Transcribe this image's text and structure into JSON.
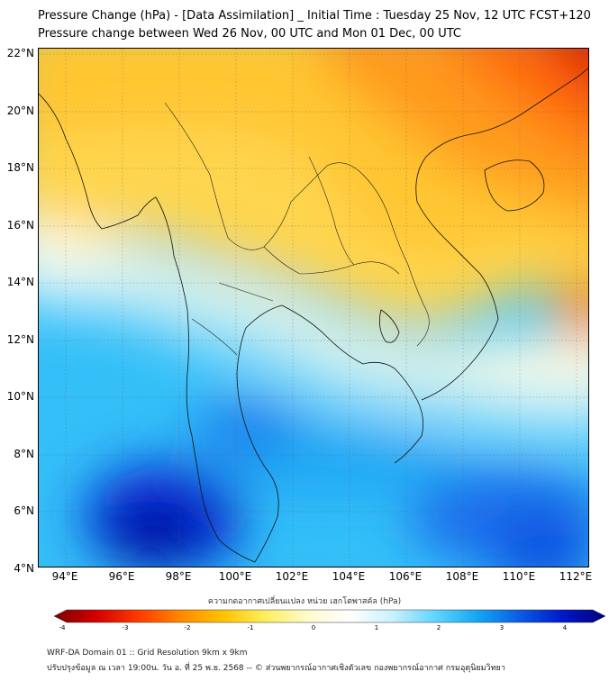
{
  "title_line1": "Pressure Change (hPa) - [Data Assimilation] _ Initial Time : Tuesday 25 Nov, 12 UTC FCST+120",
  "title_line2": "Pressure change between Wed 26 Nov, 00 UTC and Mon 01 Dec, 00 UTC",
  "lat_labels": [
    "22°N",
    "20°N",
    "18°N",
    "16°N",
    "14°N",
    "12°N",
    "10°N",
    "8°N",
    "6°N",
    "4°N"
  ],
  "lon_labels": [
    "94°E",
    "96°E",
    "98°E",
    "100°E",
    "102°E",
    "104°E",
    "106°E",
    "108°E",
    "110°E",
    "112°E"
  ],
  "colorbar": {
    "title": "ความกดอากาศเปลี่ยนแปลง หน่วย เฮกโตพาสคัล (hPa)",
    "ticks": [
      "-4",
      "-3",
      "-2",
      "-1",
      "0",
      "1",
      "2",
      "3",
      "4"
    ],
    "min": -4,
    "max": 4,
    "colors": [
      "#7a0000",
      "#d40000",
      "#ff3a00",
      "#ff8a00",
      "#ffc400",
      "#ffee60",
      "#fffad0",
      "#ffffff",
      "#c8f0ff",
      "#5fd4ff",
      "#14a6f2",
      "#0a5ae6",
      "#0018c8",
      "#00007a"
    ]
  },
  "footer_line1": "WRF-DA Domain 01 :: Grid Resolution 9km x 9km",
  "footer_line2": "ปรับปรุงข้อมูล ณ เวลา 19:00น. วัน อ. ที่ 25 พ.ย. 2568 -- © ส่วนพยากรณ์อากาศเชิงตัวเลข กองพยากรณ์อากาศ กรมอุตุนิยมวิทยา"
}
